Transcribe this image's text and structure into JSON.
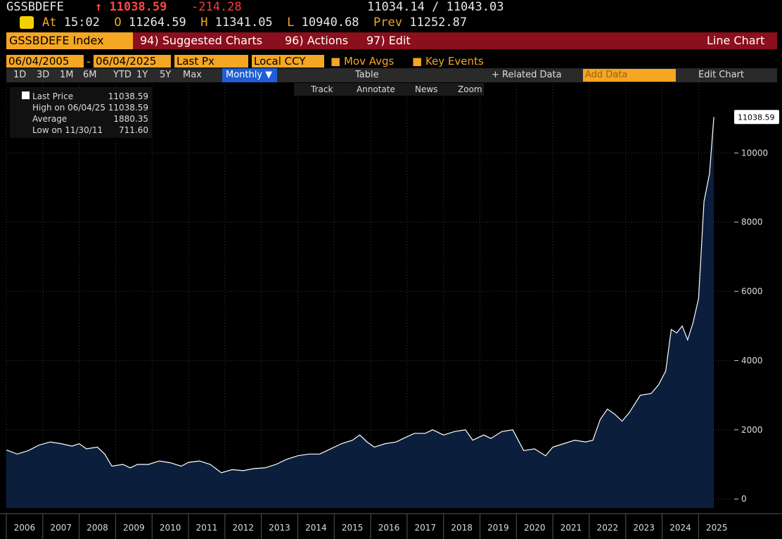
{
  "header": {
    "ticker": "GSSBDEFE",
    "last": "11038.59",
    "change": "-214.28",
    "bid_ask": "11034.14 / 11043.03",
    "time_label": "At",
    "time": "15:02",
    "open_label": "O",
    "open": "11264.59",
    "high_label": "H",
    "high": "11341.05",
    "low_label": "L",
    "low": "10940.68",
    "prev_label": "Prev",
    "prev": "11252.87"
  },
  "menu": {
    "security": "GSSBDEFE Index",
    "items": [
      "94) Suggested Charts",
      "96) Actions",
      "97) Edit"
    ],
    "view": "Line Chart"
  },
  "toolbar": {
    "start": "06/04/2005",
    "dash": "-",
    "end": "06/04/2025",
    "field": "Last Px",
    "currency": "Local CCY",
    "mov_avgs": "Mov Avgs",
    "key_events": "Key Events"
  },
  "periods": [
    "1D",
    "3D",
    "1M",
    "6M",
    "YTD",
    "1Y",
    "5Y",
    "Max"
  ],
  "toolbar2": {
    "frequency": "Monthly ▼",
    "table": "Table",
    "related": "+ Related Data",
    "add_data": "Add Data",
    "edit_chart": "Edit Chart"
  },
  "chart_tools": [
    "Track",
    "Annotate",
    "News",
    "Zoom"
  ],
  "legend": {
    "rows": [
      {
        "label": "Last Price",
        "value": "11038.59"
      },
      {
        "label": "High on 06/04/25",
        "value": "11038.59"
      },
      {
        "label": "Average",
        "value": "1880.35"
      },
      {
        "label": "Low on 11/30/11",
        "value": "711.60"
      }
    ]
  },
  "chart_data": {
    "type": "area",
    "x": [
      2006.0,
      2006.3,
      2006.6,
      2006.9,
      2007.2,
      2007.5,
      2007.8,
      2008.0,
      2008.2,
      2008.5,
      2008.7,
      2008.9,
      2009.2,
      2009.4,
      2009.6,
      2009.9,
      2010.2,
      2010.5,
      2010.8,
      2011.0,
      2011.3,
      2011.6,
      2011.9,
      2012.2,
      2012.5,
      2012.8,
      2013.1,
      2013.4,
      2013.7,
      2014.0,
      2014.3,
      2014.6,
      2014.9,
      2015.2,
      2015.5,
      2015.7,
      2015.9,
      2016.1,
      2016.4,
      2016.7,
      2016.9,
      2017.2,
      2017.5,
      2017.7,
      2018.0,
      2018.3,
      2018.6,
      2018.8,
      2019.1,
      2019.3,
      2019.6,
      2019.9,
      2020.2,
      2020.5,
      2020.8,
      2021.0,
      2021.3,
      2021.6,
      2021.9,
      2022.1,
      2022.3,
      2022.5,
      2022.7,
      2022.9,
      2023.1,
      2023.4,
      2023.7,
      2023.9,
      2024.1,
      2024.25,
      2024.4,
      2024.55,
      2024.7,
      2024.85,
      2025.0,
      2025.15,
      2025.3,
      2025.42
    ],
    "series": [
      {
        "name": "Last Price",
        "color": "#ffffff",
        "values": [
          1420,
          1300,
          1400,
          1560,
          1650,
          1600,
          1530,
          1600,
          1450,
          1500,
          1300,
          950,
          1000,
          900,
          1000,
          1000,
          1100,
          1050,
          950,
          1060,
          1100,
          1000,
          760,
          850,
          820,
          880,
          900,
          1000,
          1150,
          1250,
          1300,
          1300,
          1450,
          1600,
          1700,
          1850,
          1650,
          1500,
          1600,
          1650,
          1750,
          1900,
          1900,
          2000,
          1850,
          1950,
          2000,
          1700,
          1850,
          1750,
          1950,
          2000,
          1400,
          1450,
          1250,
          1500,
          1600,
          1700,
          1650,
          1700,
          2300,
          2600,
          2450,
          2250,
          2500,
          3000,
          3050,
          3300,
          3700,
          4900,
          4800,
          5000,
          4600,
          5100,
          5800,
          8600,
          9400,
          11038.59
        ]
      }
    ],
    "fill": "#0b1f3d",
    "xlim": [
      2006.0,
      2025.9
    ],
    "ylim": [
      -260,
      12000
    ],
    "yticks": [
      0,
      2000,
      4000,
      6000,
      8000,
      10000
    ],
    "xticks": [
      2006,
      2007,
      2008,
      2009,
      2010,
      2011,
      2012,
      2013,
      2014,
      2015,
      2016,
      2017,
      2018,
      2019,
      2020,
      2021,
      2022,
      2023,
      2024,
      2025
    ],
    "grid": true
  }
}
